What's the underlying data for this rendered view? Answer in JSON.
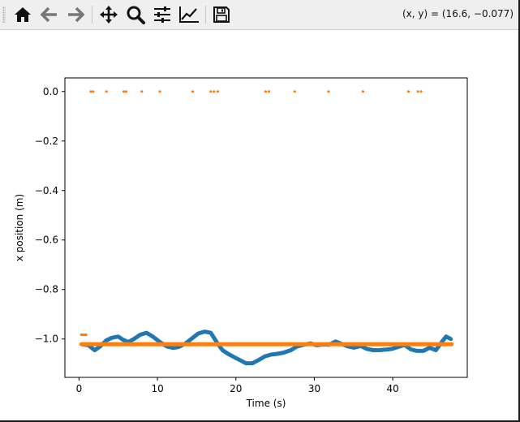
{
  "toolbar": {
    "buttons": [
      {
        "name": "home-icon",
        "tooltip": "Home"
      },
      {
        "name": "back-icon",
        "tooltip": "Back"
      },
      {
        "name": "forward-icon",
        "tooltip": "Forward"
      },
      {
        "name": "pan-icon",
        "tooltip": "Pan"
      },
      {
        "name": "zoom-icon",
        "tooltip": "Zoom"
      },
      {
        "name": "subplots-icon",
        "tooltip": "Configure subplots"
      },
      {
        "name": "axes-edit-icon",
        "tooltip": "Edit axis"
      },
      {
        "name": "save-icon",
        "tooltip": "Save"
      }
    ],
    "coords": "(x, y) = (16.6, −0.077)"
  },
  "colors": {
    "series_blue": "#1f77b4",
    "series_orange": "#ff7f0e",
    "toolbar_bg": "#efefef",
    "icon": "#111111"
  },
  "chart_data": {
    "type": "scatter",
    "xlabel": "Time (s)",
    "ylabel": "x position (m)",
    "xlim": [
      -1.8,
      49.5
    ],
    "ylim": [
      -1.155,
      0.055
    ],
    "xticks": [
      0,
      10,
      20,
      30,
      40
    ],
    "yticks": [
      0.0,
      -0.2,
      -0.4,
      -0.6,
      -0.8,
      -1.0
    ],
    "ytick_labels": [
      "0.0",
      "−0.2",
      "−0.4",
      "−0.6",
      "−0.8",
      "−1.0"
    ],
    "series": [
      {
        "color": "#1f77b4",
        "style": "thick-line",
        "x": [
          0.5,
          1.2,
          2.0,
          2.7,
          3.5,
          4.2,
          5.0,
          5.6,
          6.3,
          7.0,
          7.8,
          8.6,
          9.4,
          10.3,
          11.2,
          12.0,
          12.7,
          13.5,
          14.3,
          15.2,
          16.0,
          16.8,
          17.6,
          18.3,
          19.0,
          19.7,
          20.5,
          21.3,
          22.1,
          22.9,
          23.7,
          24.5,
          25.3,
          26.1,
          27.0,
          27.8,
          28.7,
          29.5,
          30.3,
          31.1,
          31.9,
          32.7,
          33.5,
          34.3,
          35.1,
          35.9,
          36.7,
          37.5,
          38.3,
          39.1,
          39.9,
          40.7,
          41.5,
          42.3,
          43.1,
          43.9,
          44.7,
          45.5,
          46.3,
          46.8,
          47.4
        ],
        "y": [
          -1.022,
          -1.025,
          -1.045,
          -1.03,
          -1.005,
          -0.995,
          -0.99,
          -1.003,
          -1.012,
          -1.0,
          -0.983,
          -0.975,
          -0.99,
          -1.012,
          -1.03,
          -1.036,
          -1.032,
          -1.02,
          -1.0,
          -0.978,
          -0.97,
          -0.975,
          -1.015,
          -1.045,
          -1.06,
          -1.072,
          -1.085,
          -1.098,
          -1.098,
          -1.085,
          -1.07,
          -1.063,
          -1.06,
          -1.055,
          -1.045,
          -1.03,
          -1.023,
          -1.018,
          -1.025,
          -1.022,
          -1.023,
          -1.01,
          -1.02,
          -1.03,
          -1.035,
          -1.028,
          -1.04,
          -1.045,
          -1.045,
          -1.043,
          -1.04,
          -1.032,
          -1.024,
          -1.042,
          -1.048,
          -1.048,
          -1.035,
          -1.045,
          -1.01,
          -0.99,
          -1.0
        ]
      },
      {
        "color": "#ff7f0e",
        "style": "thick-line",
        "x": [
          0.3,
          47.5
        ],
        "y": [
          -1.021,
          -1.021
        ]
      },
      {
        "color": "#ff7f0e",
        "style": "dots",
        "x": [
          0.3,
          0.5,
          0.7,
          0.9,
          1.5,
          1.8,
          3.5,
          5.7,
          6.0,
          8.0,
          10.3,
          14.5,
          16.8,
          17.2,
          17.7,
          23.8,
          24.2,
          27.5,
          31.8,
          36.2,
          42.0,
          43.2,
          43.6
        ],
        "y": [
          -0.983,
          -0.983,
          -0.983,
          -0.983,
          0.0,
          0.0,
          0.0,
          0.0,
          0.0,
          0.0,
          0.0,
          0.0,
          0.0,
          0.0,
          0.0,
          0.0,
          0.0,
          0.0,
          0.0,
          0.0,
          0.0,
          0.0,
          0.0
        ]
      }
    ]
  }
}
